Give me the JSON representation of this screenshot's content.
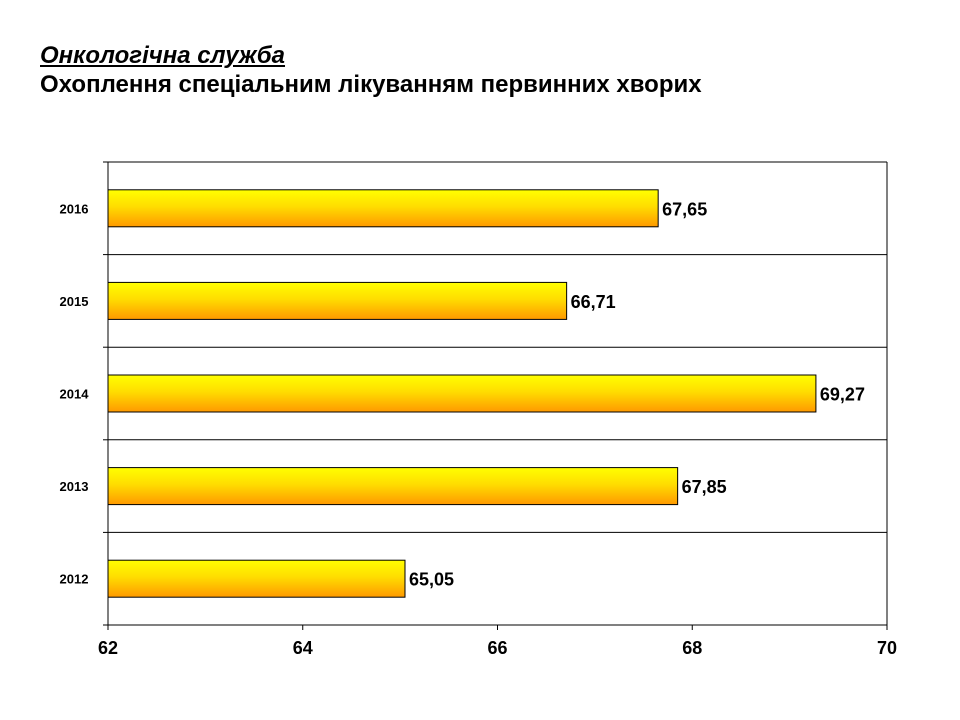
{
  "heading": {
    "section": "Онкологічна служба",
    "subtitle": "Охоплення спеціальним лікуванням первинних хворих"
  },
  "chart_data": {
    "type": "bar",
    "orientation": "horizontal",
    "categories": [
      "2016",
      "2015",
      "2014",
      "2013",
      "2012"
    ],
    "values": [
      67.65,
      66.71,
      69.27,
      67.85,
      65.05
    ],
    "value_labels": [
      "67,65",
      "66,71",
      "69,27",
      "67,85",
      "65,05"
    ],
    "xlim": [
      62,
      70
    ],
    "xticks": [
      "62",
      "64",
      "66",
      "68",
      "70"
    ],
    "grid": "horizontal separators between categories",
    "colors": {
      "bar_top": "#ffff00",
      "bar_bottom": "#ff9900",
      "bar_stroke": "#000000"
    }
  }
}
